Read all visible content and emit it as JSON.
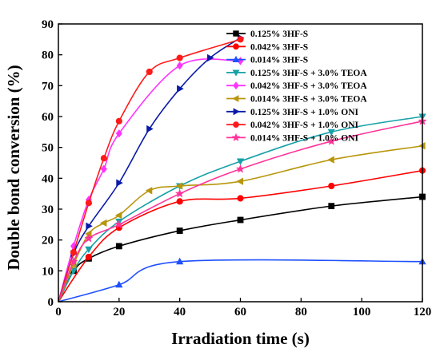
{
  "chart_data": {
    "type": "line",
    "title": "",
    "xlabel": "Irradiation time (s)",
    "ylabel": "Double bond conversion (%)",
    "xlim": [
      0,
      120
    ],
    "ylim": [
      0,
      90
    ],
    "xticks": [
      0,
      20,
      40,
      60,
      80,
      100,
      120
    ],
    "yticks": [
      0,
      10,
      20,
      30,
      40,
      50,
      60,
      70,
      80,
      90
    ],
    "grid": false,
    "legend": "top-right",
    "series": [
      {
        "name": "0.125% 3HF-S",
        "color": "#000000",
        "marker": "square",
        "x": [
          0,
          5,
          10,
          20,
          40,
          60,
          90,
          120
        ],
        "y": [
          0,
          10,
          14,
          18,
          23,
          26.5,
          31,
          34
        ]
      },
      {
        "name": "0.042% 3HF-S",
        "color": "#ff0000",
        "marker": "circle",
        "x": [
          0,
          10,
          20,
          40,
          60,
          90,
          120
        ],
        "y": [
          0,
          14.5,
          24,
          32.5,
          33.5,
          37.5,
          42.5
        ]
      },
      {
        "name": "0.014% 3HF-S",
        "color": "#1e50ff",
        "marker": "triangle-up",
        "x": [
          0,
          20,
          40,
          120
        ],
        "y": [
          0,
          5.5,
          13,
          13
        ]
      },
      {
        "name": "0.125% 3HF-S + 3.0% TEOA",
        "color": "#16a0a8",
        "marker": "triangle-down",
        "x": [
          0,
          5,
          10,
          20,
          40,
          60,
          90,
          120
        ],
        "y": [
          0,
          10,
          17,
          26,
          37.5,
          45.5,
          55,
          60
        ]
      },
      {
        "name": "0.042% 3HF-S + 3.0% TEOA",
        "color": "#ff33ff",
        "marker": "diamond",
        "x": [
          0,
          5,
          10,
          15,
          20,
          40,
          60
        ],
        "y": [
          0,
          18,
          33,
          43,
          54.5,
          76.5,
          78
        ]
      },
      {
        "name": "0.014% 3HF-S + 3.0% TEOA",
        "color": "#b8960c",
        "marker": "triangle-left",
        "x": [
          0,
          5,
          10,
          15,
          20,
          30,
          40,
          60,
          90,
          120
        ],
        "y": [
          0,
          12,
          22,
          25.5,
          28,
          36,
          37.5,
          39,
          46,
          50.5
        ]
      },
      {
        "name": "0.125% 3HF-S + 1.0% ONI",
        "color": "#0a1aa8",
        "marker": "triangle-right",
        "x": [
          0,
          5,
          10,
          20,
          30,
          40,
          50,
          60
        ],
        "y": [
          0,
          15.5,
          24.5,
          38.5,
          56,
          69,
          79,
          85.5
        ]
      },
      {
        "name": "0.042% 3HF-S + 1.0% ONI",
        "color": "#ff1a1a",
        "marker": "circle",
        "x": [
          0,
          5,
          10,
          15,
          20,
          30,
          40,
          60
        ],
        "y": [
          0,
          16,
          32,
          46.5,
          58.5,
          74.5,
          79,
          85
        ]
      },
      {
        "name": "0.014% 3HF-S + 1.0% ONI",
        "color": "#ff3399",
        "marker": "star",
        "x": [
          0,
          5,
          10,
          20,
          40,
          60,
          90,
          120
        ],
        "y": [
          0,
          13,
          20.5,
          25,
          35,
          43,
          52,
          58.5
        ]
      }
    ]
  }
}
